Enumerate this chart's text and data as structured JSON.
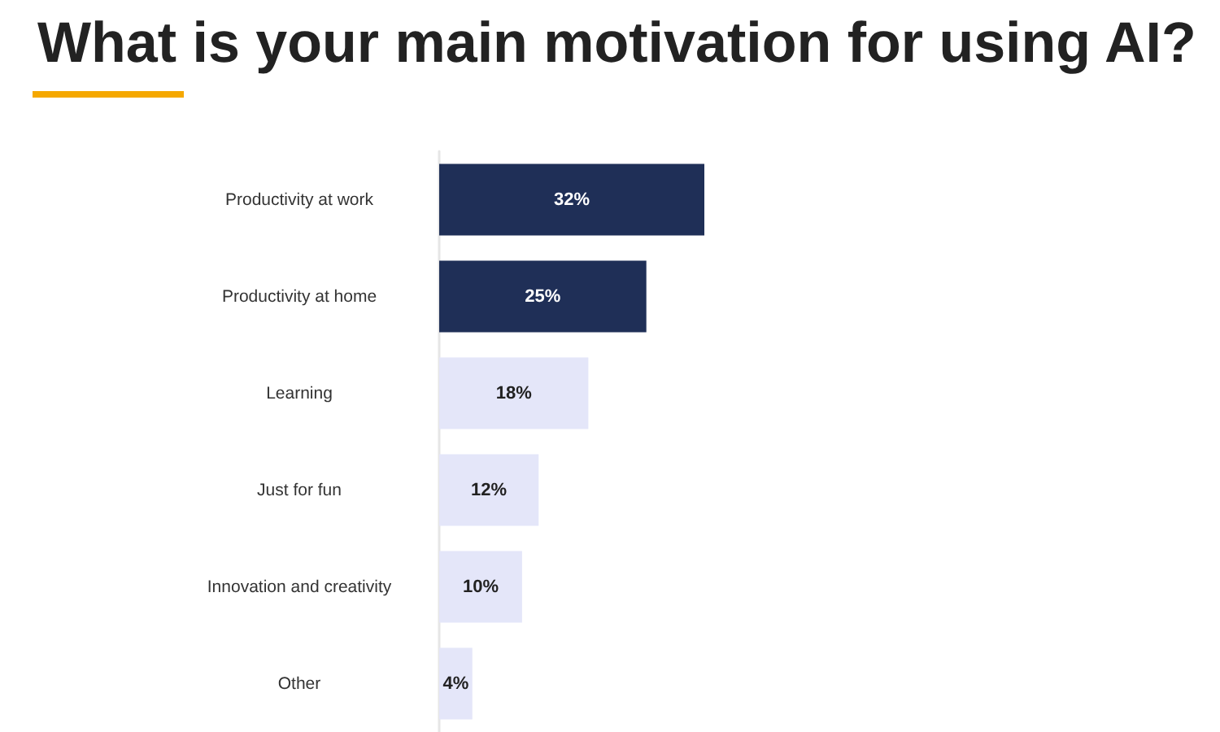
{
  "chart_data": {
    "type": "bar",
    "orientation": "horizontal",
    "title": "What is your main motivation for using AI?",
    "categories": [
      "Productivity at work",
      "Productivity at home",
      "Learning",
      "Just for fun",
      "Innovation and creativity",
      "Other"
    ],
    "values": [
      32,
      25,
      18,
      12,
      10,
      4
    ],
    "colors": [
      "#1f2f57",
      "#1f2f57",
      "#e4e6f9",
      "#e4e6f9",
      "#e4e6f9",
      "#e4e6f9"
    ],
    "value_labels": [
      "32%",
      "25%",
      "18%",
      "12%",
      "10%",
      "4%"
    ]
  }
}
